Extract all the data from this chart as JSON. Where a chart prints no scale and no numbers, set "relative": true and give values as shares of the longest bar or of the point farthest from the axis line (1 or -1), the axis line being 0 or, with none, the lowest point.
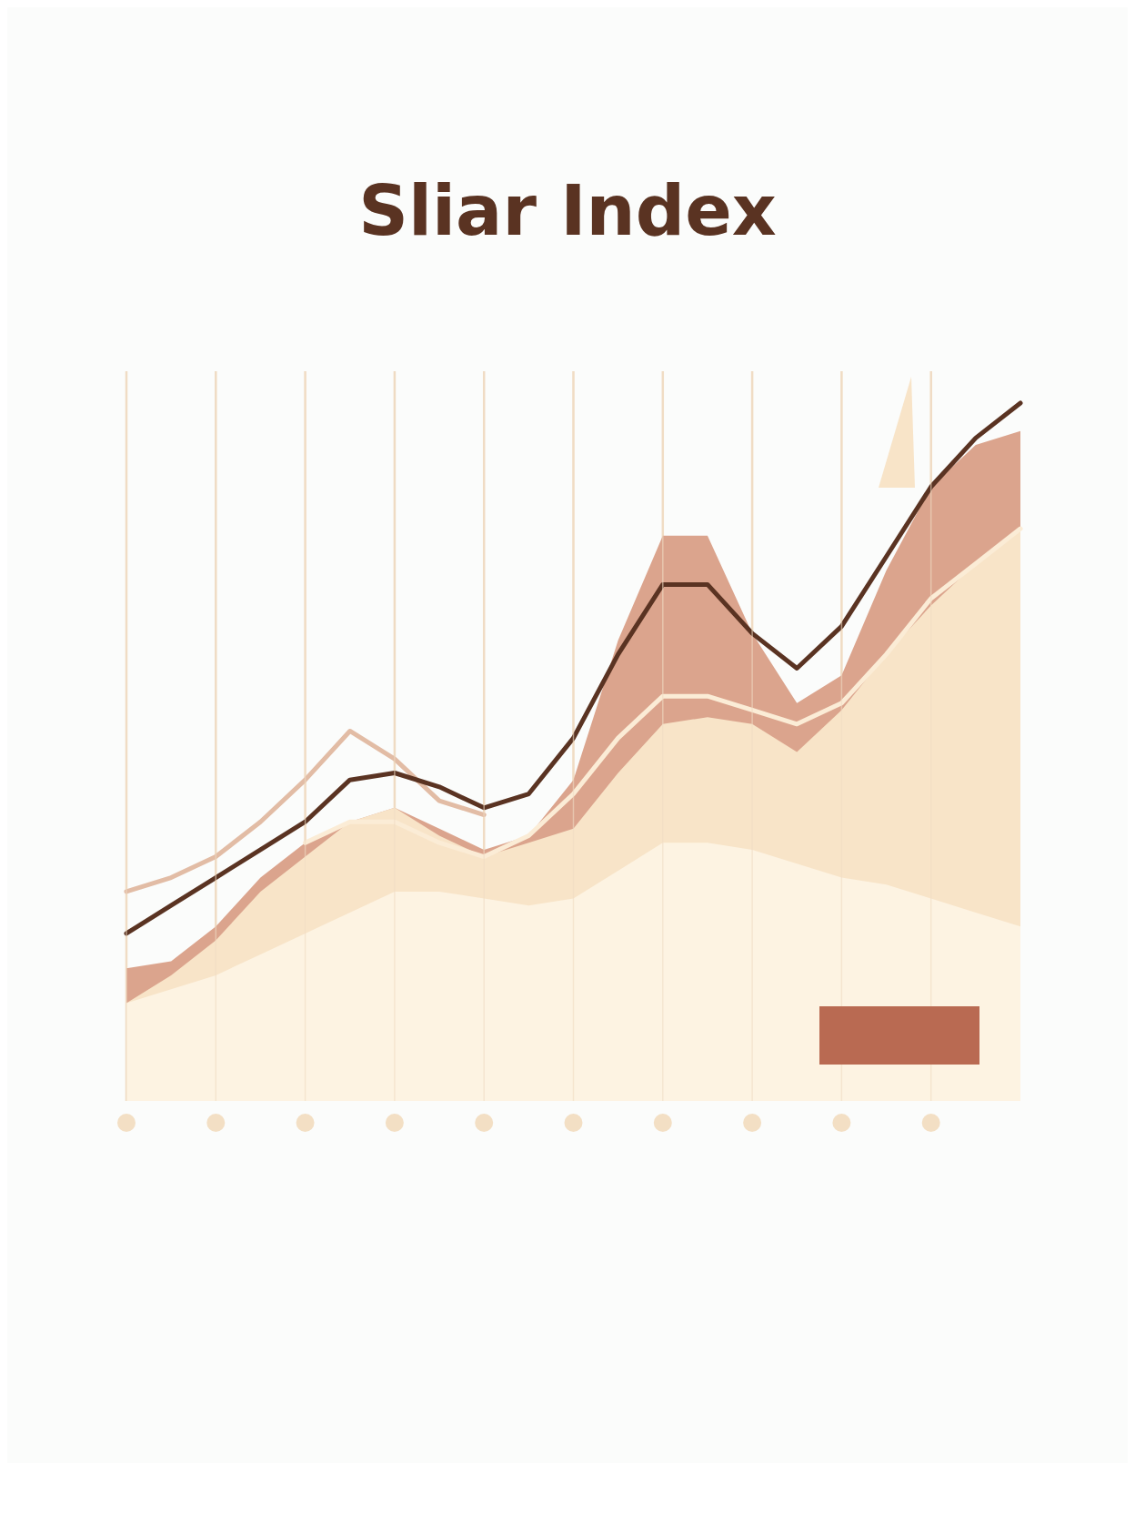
{
  "chart_data": {
    "type": "line",
    "title": "Sliar Index",
    "relative": true,
    "grid": "x",
    "categories": [
      null,
      null,
      null,
      null,
      null,
      null,
      null,
      null,
      null,
      null,
      null,
      null,
      null,
      null,
      null,
      null,
      null,
      null,
      null,
      null,
      null
    ],
    "series": [
      {
        "type": "area",
        "color": "#dba48d",
        "values": [
          0.19,
          0.2,
          0.25,
          0.32,
          0.37,
          0.4,
          0.42,
          0.39,
          0.36,
          0.38,
          0.46,
          0.66,
          0.81,
          0.81,
          0.67,
          0.57,
          0.61,
          0.76,
          0.88,
          0.94,
          0.96
        ]
      },
      {
        "type": "area",
        "color": "#f8e4c8",
        "values": [
          0.14,
          0.18,
          0.23,
          0.3,
          0.35,
          0.4,
          0.42,
          0.38,
          0.35,
          0.37,
          0.39,
          0.47,
          0.54,
          0.55,
          0.54,
          0.5,
          0.56,
          0.64,
          0.71,
          0.77,
          0.82
        ]
      },
      {
        "type": "area",
        "color": "#fdf3e2",
        "values": [
          0.14,
          0.16,
          0.18,
          0.21,
          0.24,
          0.27,
          0.3,
          0.3,
          0.29,
          0.28,
          0.29,
          0.33,
          0.37,
          0.37,
          0.36,
          0.34,
          0.32,
          0.31,
          0.29,
          0.27,
          0.25
        ]
      },
      {
        "type": "line",
        "color": "#e2bca5",
        "values": [
          0.3,
          0.32,
          0.35,
          0.4,
          0.46,
          0.53,
          0.49,
          0.43,
          0.41,
          null,
          null,
          null,
          null,
          null,
          null,
          null,
          null,
          null,
          null,
          null,
          null
        ]
      },
      {
        "type": "line",
        "color": "#fbecd6",
        "values": [
          null,
          null,
          null,
          null,
          0.37,
          0.4,
          0.4,
          0.37,
          0.35,
          0.38,
          0.44,
          0.52,
          0.58,
          0.58,
          0.56,
          0.54,
          0.57,
          0.64,
          0.72,
          0.77,
          0.82
        ]
      },
      {
        "type": "line",
        "color": "#5a3322",
        "values": [
          0.24,
          0.28,
          0.32,
          0.36,
          0.4,
          0.46,
          0.47,
          0.45,
          0.42,
          0.44,
          0.52,
          0.64,
          0.74,
          0.74,
          0.67,
          0.62,
          0.68,
          0.78,
          0.88,
          0.95,
          1.0
        ]
      }
    ]
  }
}
